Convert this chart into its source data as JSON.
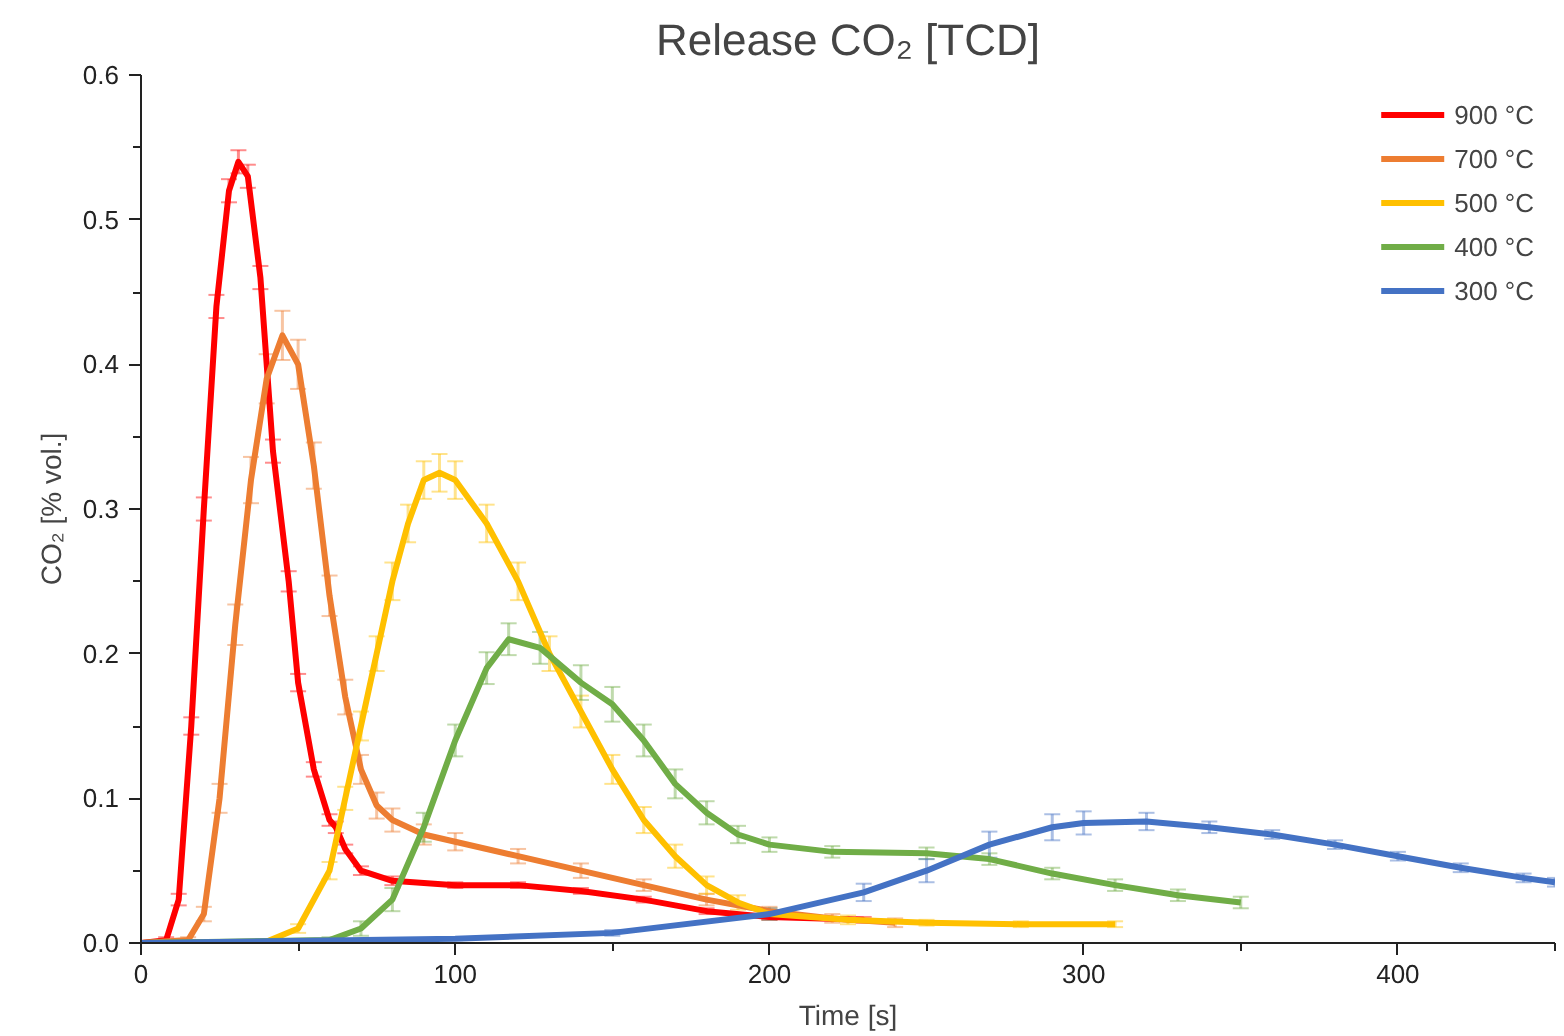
{
  "chart_data": {
    "type": "line",
    "title": "Release CO₂ [TCD]",
    "xlabel": "Time [s]",
    "ylabel": "CO₂ [% vol.]",
    "xlim": [
      0,
      450
    ],
    "ylim": [
      0,
      0.6
    ],
    "xticks": [
      0,
      {
        "value": 50,
        "label": null
      },
      100,
      {
        "value": 150,
        "label": null
      },
      200,
      {
        "value": 250,
        "label": null
      },
      300,
      {
        "value": 350,
        "label": null
      },
      400,
      {
        "value": 450,
        "label": null
      }
    ],
    "yticks": [
      {
        "value": 0,
        "label": "0.0"
      },
      {
        "value": 0.05,
        "label": null
      },
      0.1,
      {
        "value": 0.15,
        "label": null
      },
      0.2,
      {
        "value": 0.25,
        "label": null
      },
      0.3,
      {
        "value": 0.35,
        "label": null
      },
      0.4,
      {
        "value": 0.45,
        "label": null
      },
      0.5,
      {
        "value": 0.55,
        "label": null
      },
      0.6
    ],
    "grid": false,
    "legend": "top right",
    "marker": "none",
    "line_style": "solid",
    "series": [
      {
        "name": "900 °C",
        "color": "#ff0000",
        "x": [
          0,
          8,
          12,
          16,
          20,
          24,
          28,
          31,
          34,
          38,
          42,
          47,
          50,
          55,
          60,
          62,
          65,
          70,
          80,
          100,
          120,
          140,
          160,
          180,
          200,
          230
        ],
        "values": [
          0,
          0.002,
          0.03,
          0.15,
          0.3,
          0.44,
          0.52,
          0.54,
          0.53,
          0.46,
          0.34,
          0.25,
          0.18,
          0.12,
          0.085,
          0.08,
          0.065,
          0.05,
          0.043,
          0.04,
          0.04,
          0.036,
          0.03,
          0.022,
          0.018,
          0.016
        ],
        "errors": [
          0.001,
          0.002,
          0.004,
          0.006,
          0.008,
          0.008,
          0.008,
          0.008,
          0.008,
          0.008,
          0.008,
          0.007,
          0.006,
          0.005,
          0.004,
          0.004,
          0.003,
          0.003,
          0.003,
          0.002,
          0.002,
          0.002,
          0.002,
          0.002,
          0.002,
          0.002
        ]
      },
      {
        "name": "700 °C",
        "color": "#ed7d31",
        "x": [
          0,
          15,
          20,
          25,
          30,
          35,
          40,
          45,
          50,
          55,
          60,
          65,
          70,
          75,
          80,
          90,
          100,
          120,
          140,
          160,
          180,
          200,
          220,
          240
        ],
        "values": [
          0,
          0.002,
          0.02,
          0.1,
          0.22,
          0.32,
          0.39,
          0.42,
          0.4,
          0.33,
          0.24,
          0.17,
          0.12,
          0.095,
          0.085,
          0.075,
          0.07,
          0.06,
          0.05,
          0.04,
          0.03,
          0.022,
          0.017,
          0.014
        ],
        "errors": [
          0.001,
          0.002,
          0.005,
          0.01,
          0.014,
          0.016,
          0.017,
          0.017,
          0.017,
          0.016,
          0.014,
          0.012,
          0.01,
          0.009,
          0.008,
          0.007,
          0.006,
          0.005,
          0.005,
          0.004,
          0.004,
          0.003,
          0.003,
          0.003
        ]
      },
      {
        "name": "500 °C",
        "color": "#ffc000",
        "x": [
          0,
          40,
          50,
          60,
          65,
          70,
          75,
          80,
          85,
          90,
          95,
          100,
          110,
          120,
          130,
          140,
          150,
          160,
          170,
          180,
          190,
          200,
          225,
          250,
          280,
          310
        ],
        "values": [
          0,
          0.001,
          0.01,
          0.05,
          0.1,
          0.15,
          0.2,
          0.25,
          0.29,
          0.32,
          0.325,
          0.32,
          0.29,
          0.25,
          0.2,
          0.16,
          0.12,
          0.085,
          0.06,
          0.04,
          0.028,
          0.02,
          0.016,
          0.014,
          0.013,
          0.013
        ],
        "errors": [
          0.001,
          0.001,
          0.003,
          0.006,
          0.008,
          0.01,
          0.012,
          0.013,
          0.013,
          0.013,
          0.013,
          0.013,
          0.013,
          0.013,
          0.012,
          0.011,
          0.01,
          0.009,
          0.008,
          0.006,
          0.005,
          0.004,
          0.003,
          0.002,
          0.002,
          0.002
        ]
      },
      {
        "name": "400 °C",
        "color": "#70ad47",
        "x": [
          0,
          60,
          70,
          80,
          90,
          100,
          110,
          117,
          127,
          140,
          150,
          160,
          170,
          180,
          190,
          200,
          220,
          250,
          270,
          290,
          310,
          330,
          350
        ],
        "values": [
          0,
          0.002,
          0.01,
          0.03,
          0.08,
          0.14,
          0.19,
          0.21,
          0.204,
          0.18,
          0.165,
          0.14,
          0.11,
          0.09,
          0.075,
          0.068,
          0.063,
          0.062,
          0.058,
          0.048,
          0.04,
          0.033,
          0.028
        ],
        "errors": [
          0.001,
          0.002,
          0.005,
          0.008,
          0.01,
          0.011,
          0.011,
          0.011,
          0.011,
          0.012,
          0.012,
          0.011,
          0.01,
          0.008,
          0.006,
          0.005,
          0.004,
          0.004,
          0.004,
          0.004,
          0.004,
          0.004,
          0.004
        ]
      },
      {
        "name": "300 °C",
        "color": "#4472c4",
        "x": [
          0,
          100,
          150,
          200,
          230,
          250,
          270,
          290,
          300,
          320,
          340,
          360,
          380,
          400,
          420,
          440,
          450
        ],
        "values": [
          0,
          0.003,
          0.007,
          0.02,
          0.035,
          0.05,
          0.068,
          0.08,
          0.083,
          0.084,
          0.08,
          0.075,
          0.068,
          0.06,
          0.052,
          0.045,
          0.042
        ],
        "errors": [
          0.001,
          0.001,
          0.002,
          0.004,
          0.006,
          0.008,
          0.009,
          0.009,
          0.008,
          0.006,
          0.004,
          0.003,
          0.003,
          0.003,
          0.003,
          0.003,
          0.003
        ]
      }
    ]
  }
}
